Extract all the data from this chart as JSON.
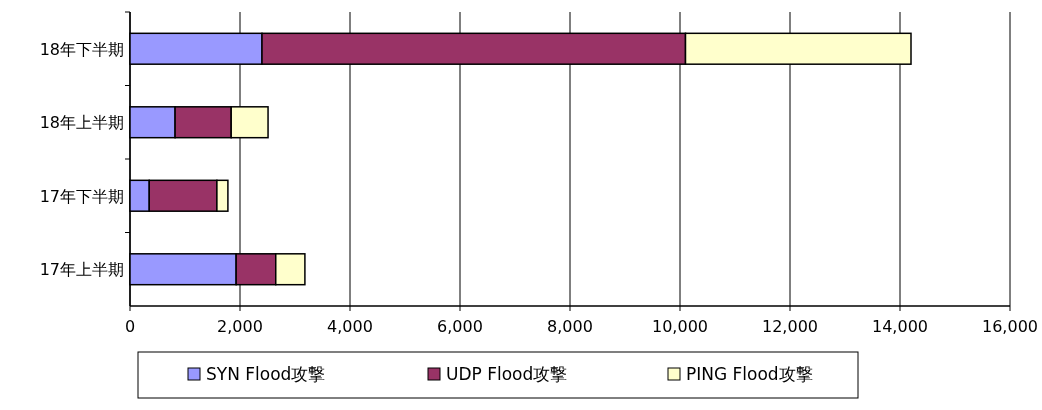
{
  "chart_data": {
    "type": "bar",
    "orientation": "horizontal",
    "stacked": true,
    "categories": [
      "18年下半期",
      "18年上半期",
      "17年下半期",
      "17年上半期"
    ],
    "series": [
      {
        "name": "SYN Flood攻撃",
        "color": "#9999ff",
        "values": [
          2400,
          820,
          350,
          1930
        ]
      },
      {
        "name": "UDP Flood攻撃",
        "color": "#993366",
        "values": [
          7700,
          1020,
          1230,
          720
        ]
      },
      {
        "name": "PING Flood攻撃",
        "color": "#ffffcc",
        "values": [
          4100,
          670,
          200,
          530
        ]
      }
    ],
    "xlim": [
      0,
      16000
    ],
    "xticks": [
      {
        "value": 0,
        "label": "0"
      },
      {
        "value": 2000,
        "label": "2,000"
      },
      {
        "value": 4000,
        "label": "4,000"
      },
      {
        "value": 6000,
        "label": "6,000"
      },
      {
        "value": 8000,
        "label": "8,000"
      },
      {
        "value": 10000,
        "label": "10,000"
      },
      {
        "value": 12000,
        "label": "12,000"
      },
      {
        "value": 14000,
        "label": "14,000"
      },
      {
        "value": 16000,
        "label": "16,000"
      }
    ],
    "grid": "x",
    "legend": "bottom"
  }
}
